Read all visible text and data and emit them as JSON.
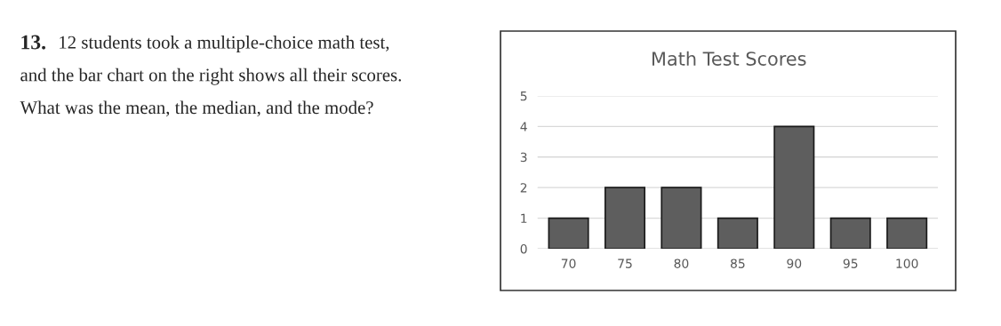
{
  "chart_data": {
    "type": "bar",
    "title": "Math Test Scores",
    "categories": [
      "70",
      "75",
      "80",
      "85",
      "90",
      "95",
      "100"
    ],
    "values": [
      1,
      2,
      2,
      1,
      4,
      1,
      1
    ],
    "color": "#5e5e5e",
    "ylim": [
      0,
      5
    ],
    "yticks": [
      0,
      1,
      2,
      3,
      4,
      5
    ],
    "grid": "y",
    "annotations": [
      "13.",
      "12 students took a multiple-choice math test,",
      "and the bar chart on the right shows all their scores.",
      "What was the mean, the median, and the mode?"
    ]
  }
}
